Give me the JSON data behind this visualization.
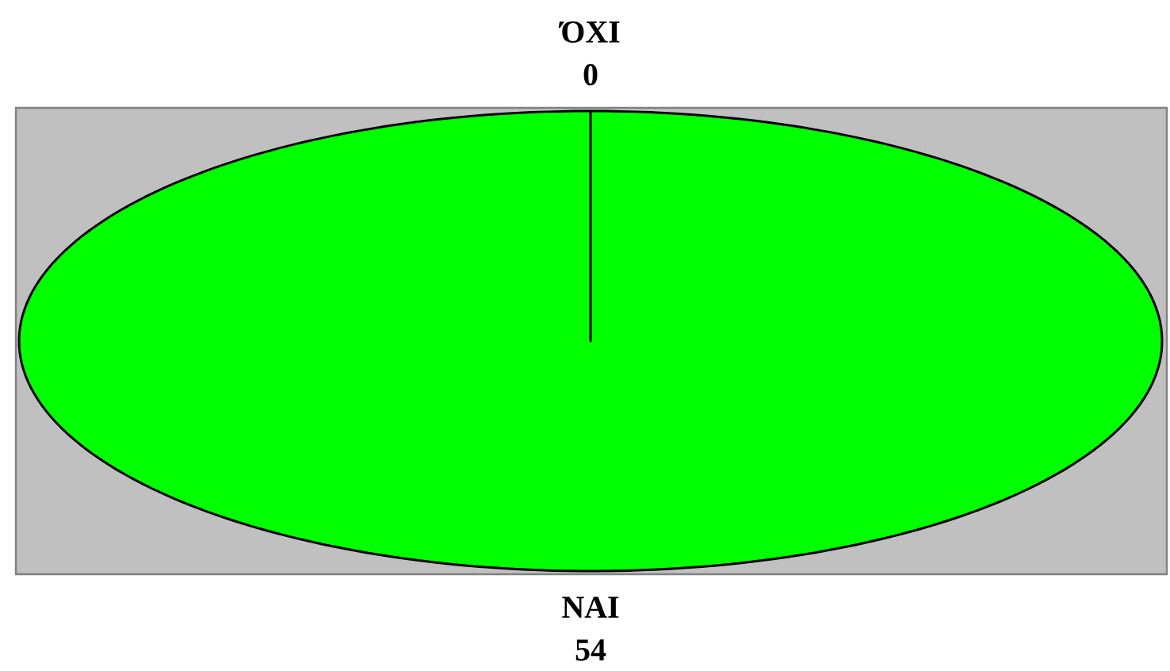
{
  "chart_data": {
    "type": "pie",
    "categories": [
      "ΌΧΙ",
      "ΝΑΙ"
    ],
    "values": [
      0,
      54
    ],
    "colors": [
      null,
      "#00ff00"
    ],
    "value_labels": [
      "0",
      "54"
    ]
  }
}
